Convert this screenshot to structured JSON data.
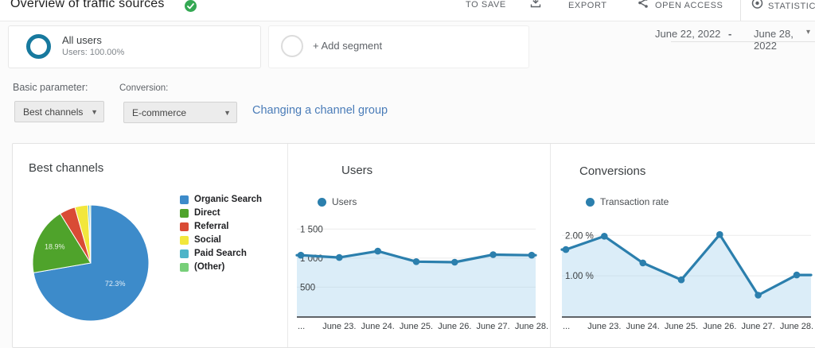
{
  "header": {
    "title": "Overview of traffic sources",
    "toolbar": {
      "save": "TO SAVE",
      "export": "EXPORT",
      "open_access": "OPEN ACCESS",
      "statistics": "STATISTICS"
    }
  },
  "segments": {
    "all_users_title": "All users",
    "all_users_subtitle": "Users: 100.00%",
    "add_segment_label": "+ Add segment"
  },
  "date_range": {
    "start": "June 22, 2022",
    "separator": "-",
    "end": "June 28, 2022"
  },
  "filters": {
    "basic_parameter_label": "Basic parameter:",
    "basic_parameter_value": "Best channels",
    "conversion_label": "Conversion:",
    "conversion_value": "E-commerce",
    "channel_group_link": "Changing a channel group"
  },
  "colors": {
    "line_blue": "#2b7fad",
    "link_blue": "#4a7cb8",
    "check_green": "#34a853",
    "segment_ring_blue": "#17799e"
  },
  "chart_data": [
    {
      "type": "pie",
      "title": "Best channels",
      "legend_position": "right",
      "slices": [
        {
          "label": "Organic Search",
          "value": 72.3,
          "color": "#3d8bca",
          "pct_label": "72.3%"
        },
        {
          "label": "Direct",
          "value": 18.9,
          "color": "#4fa32b",
          "pct_label": "18.9%"
        },
        {
          "label": "Referral",
          "value": 4.4,
          "color": "#d94b35",
          "pct_label": ""
        },
        {
          "label": "Social",
          "value": 3.6,
          "color": "#f2e73c",
          "pct_label": ""
        },
        {
          "label": "Paid Search",
          "value": 0.5,
          "color": "#4db4c8",
          "pct_label": ""
        },
        {
          "label": "(Other)",
          "value": 0.3,
          "color": "#77cf79",
          "pct_label": ""
        }
      ]
    },
    {
      "type": "line",
      "title": "Users",
      "series": [
        {
          "name": "Users",
          "color": "#2b7fad",
          "values": [
            1050,
            1010,
            1120,
            940,
            930,
            1060,
            1050
          ]
        }
      ],
      "x_labels": [
        "...",
        "June 23.",
        "June 24.",
        "June 25.",
        "June 26.",
        "June 27.",
        "June 28."
      ],
      "y_ticks": [
        {
          "value": 500,
          "label": "500"
        },
        {
          "value": 1000,
          "label": "1 000"
        },
        {
          "value": 1500,
          "label": "1 500"
        }
      ],
      "ylim": [
        0,
        1600
      ],
      "grid": true,
      "fill_color": "rgba(164,211,238,0.4)"
    },
    {
      "type": "line",
      "title": "Conversions",
      "series": [
        {
          "name": "Transaction rate",
          "color": "#2b7fad",
          "values": [
            1.65,
            1.98,
            1.32,
            0.9,
            2.02,
            0.52,
            1.02
          ]
        }
      ],
      "x_labels": [
        "...",
        "June 23.",
        "June 24.",
        "June 25.",
        "June 26.",
        "June 27.",
        "June 28."
      ],
      "y_ticks": [
        {
          "value": 1,
          "label": "1.00 %"
        },
        {
          "value": 2,
          "label": "2.00 %"
        }
      ],
      "ylim": [
        0,
        2.3
      ],
      "grid": true,
      "fill_color": "rgba(164,211,238,0.4)"
    }
  ]
}
